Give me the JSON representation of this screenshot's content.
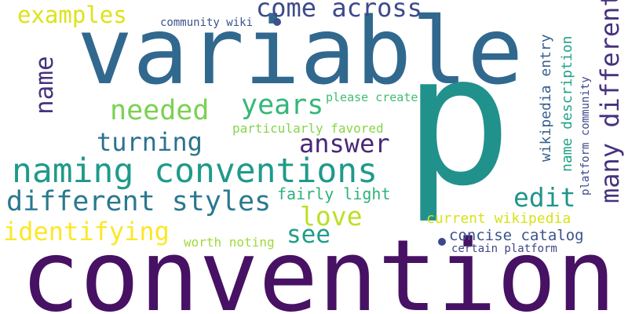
{
  "words": [
    {
      "text": "variable",
      "color": "#31688e"
    },
    {
      "text": "convention",
      "color": "#471164"
    },
    {
      "text": "p",
      "color": "#21918c"
    },
    {
      "text": "naming conventions",
      "color": "#1f9a8a"
    },
    {
      "text": "different styles",
      "color": "#2a788e"
    },
    {
      "text": "examples",
      "color": "#dde318"
    },
    {
      "text": "come across",
      "color": "#3e4a89"
    },
    {
      "text": "community wiki",
      "color": "#3b528b"
    },
    {
      "text": "name",
      "color": "#46337e"
    },
    {
      "text": "needed",
      "color": "#7ad151"
    },
    {
      "text": "years",
      "color": "#35b779"
    },
    {
      "text": "turning",
      "color": "#2c728e"
    },
    {
      "text": "answer",
      "color": "#482878"
    },
    {
      "text": "identifying",
      "color": "#fde725"
    },
    {
      "text": "fairly light",
      "color": "#2db27d"
    },
    {
      "text": "love",
      "color": "#bddf26"
    },
    {
      "text": "see",
      "color": "#1f9e89"
    },
    {
      "text": "edit",
      "color": "#1f968b"
    },
    {
      "text": "worth noting",
      "color": "#a0da39"
    },
    {
      "text": "please create",
      "color": "#3fbc73"
    },
    {
      "text": "particularly favored",
      "color": "#86d549"
    },
    {
      "text": "current wikipedia",
      "color": "#d8e219"
    },
    {
      "text": "concise catalog",
      "color": "#3b528b"
    },
    {
      "text": "certain platform",
      "color": "#414487"
    },
    {
      "text": "many different",
      "color": "#46327e"
    },
    {
      "text": "wikipedia entry",
      "color": "#355f8d"
    },
    {
      "text": "name description",
      "color": "#20a386"
    },
    {
      "text": "platform community",
      "color": "#3e4989"
    }
  ],
  "dots": [
    {
      "color": "#3b528b"
    },
    {
      "color": "#3e4989"
    }
  ]
}
